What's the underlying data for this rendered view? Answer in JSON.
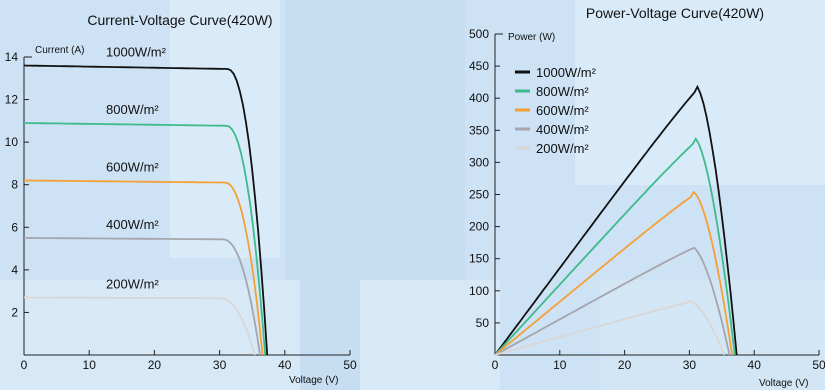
{
  "chart_data": [
    {
      "type": "line",
      "title": "Current-Voltage Curve(420W)",
      "xlabel": "Voltage (V)",
      "ylabel": "Current (A)",
      "xlim": [
        0,
        50
      ],
      "ylim": [
        0,
        14
      ],
      "xticks": [
        0,
        10,
        20,
        30,
        40,
        50
      ],
      "yticks": [
        2,
        4,
        6,
        8,
        10,
        12,
        14
      ],
      "legend": "inline labels",
      "series": [
        {
          "name": "1000W/m²",
          "color": "#111111",
          "isc": 13.6,
          "voc": 37.3,
          "knee": 31.2
        },
        {
          "name": "800W/m²",
          "color": "#3dbb8a",
          "isc": 10.9,
          "voc": 37.0,
          "knee": 31.0
        },
        {
          "name": "600W/m²",
          "color": "#f5a035",
          "isc": 8.2,
          "voc": 36.6,
          "knee": 30.8
        },
        {
          "name": "400W/m²",
          "color": "#a5a5ac",
          "isc": 5.5,
          "voc": 36.2,
          "knee": 30.5
        },
        {
          "name": "200W/m²",
          "color": "#d9d6d6",
          "isc": 2.7,
          "voc": 35.4,
          "knee": 30.0
        }
      ]
    },
    {
      "type": "line",
      "title": "Power-Voltage Curve(420W)",
      "xlabel": "Voltage (V)",
      "ylabel": "Power (W)",
      "xlim": [
        0,
        50
      ],
      "ylim": [
        0,
        500
      ],
      "xticks": [
        0,
        10,
        20,
        30,
        40,
        50
      ],
      "yticks": [
        50,
        100,
        150,
        200,
        250,
        300,
        350,
        400,
        450,
        500
      ],
      "legend": "top-left",
      "series": [
        {
          "name": "1000W/m²",
          "color": "#111111",
          "vmp": 31.0,
          "pmax": 420,
          "voc": 37.3
        },
        {
          "name": "800W/m²",
          "color": "#3dbb8a",
          "vmp": 30.8,
          "pmax": 338,
          "voc": 37.0
        },
        {
          "name": "600W/m²",
          "color": "#f5a035",
          "vmp": 30.6,
          "pmax": 254,
          "voc": 36.6
        },
        {
          "name": "400W/m²",
          "color": "#a5a5ac",
          "vmp": 30.4,
          "pmax": 169,
          "voc": 36.2
        },
        {
          "name": "200W/m²",
          "color": "#d9d6d6",
          "vmp": 30.0,
          "pmax": 84,
          "voc": 35.4
        }
      ]
    }
  ]
}
